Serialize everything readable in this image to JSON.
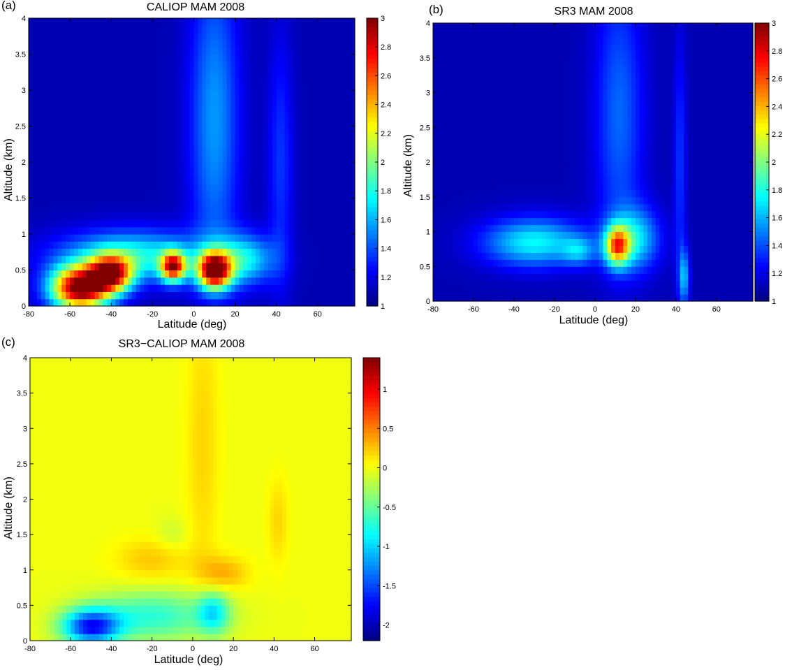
{
  "chart_data": [
    {
      "type": "heatmap",
      "panel_label": "(a)",
      "title": "CALIOP MAM 2008",
      "xlabel": "Latitude (deg)",
      "ylabel": "Altitude (km)",
      "xlim": [
        -80,
        78
      ],
      "ylim": [
        0,
        4
      ],
      "xticks": [
        -80,
        -60,
        -40,
        -20,
        0,
        20,
        40,
        60
      ],
      "yticks": [
        0,
        0.5,
        1,
        1.5,
        2,
        2.5,
        3,
        3.5,
        4
      ],
      "colorbar": {
        "min": 1,
        "max": 3,
        "ticks": [
          1,
          1.2,
          1.4,
          1.6,
          1.8,
          2,
          2.2,
          2.4,
          2.6,
          2.8,
          3
        ]
      },
      "background": 1.1,
      "features": [
        {
          "lat": -55,
          "alt": 0.25,
          "value": 1.95,
          "lat_width": 14,
          "alt_width": 0.3
        },
        {
          "lat": -40,
          "alt": 0.45,
          "value": 1.5,
          "lat_width": 10,
          "alt_width": 0.25
        },
        {
          "lat": -10,
          "alt": 0.55,
          "value": 1.55,
          "lat_width": 6,
          "alt_width": 0.2
        },
        {
          "lat": 10,
          "alt": 0.5,
          "value": 1.85,
          "lat_width": 8,
          "alt_width": 0.25
        },
        {
          "lat": -30,
          "alt": 0.7,
          "value": 0.7,
          "lat_width": 35,
          "alt_width": 0.35
        },
        {
          "lat": 25,
          "alt": 0.65,
          "value": 0.6,
          "lat_width": 14,
          "alt_width": 0.35
        },
        {
          "lat": 10,
          "alt": 2.6,
          "value": 0.45,
          "lat_width": 12,
          "alt_width": 2.2
        },
        {
          "lat": 42,
          "alt": 2.0,
          "value": 0.25,
          "lat_width": 6,
          "alt_width": 1.8
        }
      ]
    },
    {
      "type": "heatmap",
      "panel_label": "(b)",
      "title": "SR3 MAM 2008",
      "xlabel": "Latitude (deg)",
      "ylabel": "Altitude (km)",
      "xlim": [
        -80,
        78
      ],
      "ylim": [
        0,
        4
      ],
      "xticks": [
        -80,
        -60,
        -40,
        -20,
        0,
        20,
        40,
        60
      ],
      "yticks": [
        0,
        0.5,
        1,
        1.5,
        2,
        2.5,
        3,
        3.5,
        4
      ],
      "colorbar": {
        "min": 1,
        "max": 3,
        "ticks": [
          1,
          1.2,
          1.4,
          1.6,
          1.8,
          2,
          2.2,
          2.4,
          2.6,
          2.8,
          3
        ]
      },
      "background": 1.1,
      "features": [
        {
          "lat": -30,
          "alt": 0.85,
          "value": 0.65,
          "lat_width": 25,
          "alt_width": 0.35
        },
        {
          "lat": -8,
          "alt": 0.72,
          "value": 0.35,
          "lat_width": 8,
          "alt_width": 0.2
        },
        {
          "lat": 11,
          "alt": 0.8,
          "value": 1.2,
          "lat_width": 6,
          "alt_width": 0.28
        },
        {
          "lat": 20,
          "alt": 0.9,
          "value": 0.55,
          "lat_width": 12,
          "alt_width": 0.45
        },
        {
          "lat": 12,
          "alt": 2.7,
          "value": 0.35,
          "lat_width": 12,
          "alt_width": 2.0
        },
        {
          "lat": 44,
          "alt": 0.35,
          "value": 0.5,
          "lat_width": 2.5,
          "alt_width": 0.4
        },
        {
          "lat": 42,
          "alt": 2.0,
          "value": 0.25,
          "lat_width": 3,
          "alt_width": 1.8
        }
      ]
    },
    {
      "type": "heatmap",
      "panel_label": "(c)",
      "title": "SR3−CALIOP MAM 2008",
      "xlabel": "Latitude (deg)",
      "ylabel": "Altitude (km)",
      "xlim": [
        -80,
        78
      ],
      "ylim": [
        0,
        4
      ],
      "xticks": [
        -80,
        -60,
        -40,
        -20,
        0,
        20,
        40,
        60
      ],
      "yticks": [
        0,
        0.5,
        1,
        1.5,
        2,
        2.5,
        3,
        3.5,
        4
      ],
      "colorbar": {
        "min": -2.2,
        "max": 1.4,
        "ticks": [
          -2,
          -1.5,
          -1,
          -0.5,
          0,
          0.5,
          1
        ]
      },
      "background": 0.0,
      "features": [
        {
          "lat": -50,
          "alt": 0.2,
          "value": -1.6,
          "lat_width": 14,
          "alt_width": 0.25
        },
        {
          "lat": -20,
          "alt": 0.35,
          "value": -0.7,
          "lat_width": 30,
          "alt_width": 0.35
        },
        {
          "lat": 10,
          "alt": 0.4,
          "value": -0.8,
          "lat_width": 8,
          "alt_width": 0.3
        },
        {
          "lat": 15,
          "alt": 0.95,
          "value": 0.35,
          "lat_width": 12,
          "alt_width": 0.25
        },
        {
          "lat": -20,
          "alt": 1.15,
          "value": 0.25,
          "lat_width": 18,
          "alt_width": 0.3
        },
        {
          "lat": 5,
          "alt": 2.8,
          "value": 0.2,
          "lat_width": 8,
          "alt_width": 2.0
        },
        {
          "lat": 42,
          "alt": 1.7,
          "value": 0.2,
          "lat_width": 5,
          "alt_width": 0.6
        },
        {
          "lat": -10,
          "alt": 1.5,
          "value": -0.15,
          "lat_width": 8,
          "alt_width": 0.25
        }
      ]
    }
  ]
}
